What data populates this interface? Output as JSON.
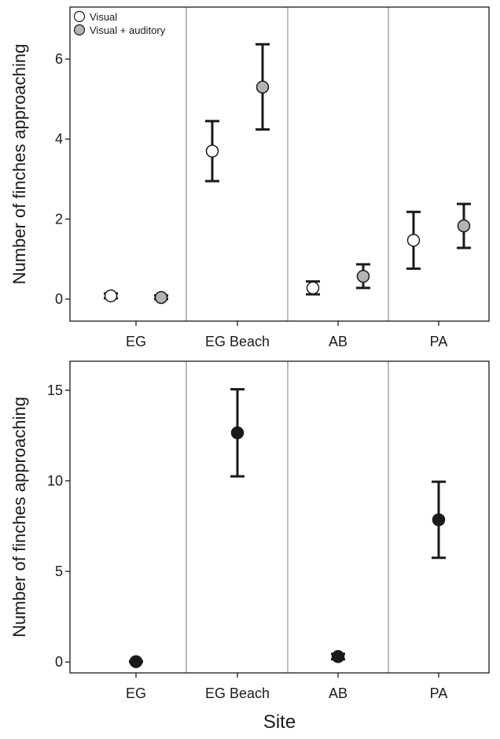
{
  "chart_data": [
    {
      "type": "scatter",
      "subtype": "point-errorbar",
      "title": "",
      "xlabel": "",
      "ylabel": "Number of finches approaching",
      "categories": [
        "EG",
        "EG Beach",
        "AB",
        "PA"
      ],
      "ylim": [
        -0.55,
        7.3
      ],
      "yticks": [
        0,
        2,
        4,
        6
      ],
      "grid": false,
      "category_separators": true,
      "legend_position": "top-left",
      "series": [
        {
          "name": "Visual",
          "marker_fill": "#ffffff",
          "values": [
            0.08,
            3.7,
            0.28,
            1.47
          ],
          "lower": [
            0.02,
            2.95,
            0.12,
            0.76
          ],
          "upper": [
            0.14,
            4.45,
            0.44,
            2.18
          ]
        },
        {
          "name": "Visual + auditory",
          "marker_fill": "#b3b3b3",
          "values": [
            0.04,
            5.3,
            0.57,
            1.83
          ],
          "lower": [
            0.0,
            4.24,
            0.28,
            1.28
          ],
          "upper": [
            0.09,
            6.37,
            0.87,
            2.38
          ]
        }
      ]
    },
    {
      "type": "scatter",
      "subtype": "point-errorbar",
      "title": "",
      "xlabel": "Site",
      "ylabel": "Number of finches approaching",
      "categories": [
        "EG",
        "EG Beach",
        "AB",
        "PA"
      ],
      "ylim": [
        -0.6,
        16.6
      ],
      "yticks": [
        0,
        5,
        10,
        15
      ],
      "grid": false,
      "category_separators": true,
      "series": [
        {
          "name": "",
          "marker_fill": "#1a1a1a",
          "values": [
            0.02,
            12.65,
            0.3,
            7.85
          ],
          "lower": [
            0.0,
            10.25,
            0.15,
            5.75
          ],
          "upper": [
            0.05,
            15.05,
            0.45,
            9.95
          ]
        }
      ]
    }
  ]
}
